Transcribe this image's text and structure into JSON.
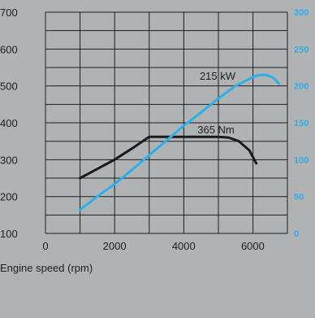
{
  "chart_data": {
    "type": "line",
    "xlabel": "Engine speed (rpm)",
    "xlim": [
      0,
      7000
    ],
    "x_ticks": [
      "0",
      "2000",
      "4000",
      "6000"
    ],
    "x_tick_values": [
      0,
      2000,
      4000,
      6000
    ],
    "y_left_lim": [
      100,
      700
    ],
    "y_left_ticks": [
      "100",
      "200",
      "300",
      "400",
      "500",
      "600",
      "700"
    ],
    "y_left_tick_values": [
      100,
      200,
      300,
      400,
      500,
      600,
      700
    ],
    "y_right_lim": [
      0,
      300
    ],
    "y_right_ticks": [
      "0",
      "50",
      "100",
      "150",
      "200",
      "250",
      "300"
    ],
    "y_right_tick_values": [
      0,
      50,
      100,
      150,
      200,
      250,
      300
    ],
    "grid": true,
    "series": [
      {
        "name": "365 Nm",
        "axis": "left",
        "color": "#1a1a1a",
        "x": [
          1000,
          1500,
          2000,
          2500,
          3000,
          3500,
          4000,
          4500,
          5000,
          5300,
          5600,
          5900,
          6100
        ],
        "y": [
          250,
          275,
          300,
          330,
          362,
          362,
          362,
          362,
          362,
          360,
          350,
          325,
          290
        ]
      },
      {
        "name": "215 kW",
        "axis": "right",
        "color": "#27b0ea",
        "x": [
          1000,
          1500,
          2000,
          2500,
          3000,
          3500,
          4000,
          4500,
          5000,
          5500,
          6000,
          6200,
          6400,
          6600,
          6750
        ],
        "y": [
          32,
          50,
          67,
          86,
          106,
          126,
          146,
          164,
          183,
          200,
          212,
          215,
          215,
          211,
          203
        ]
      }
    ]
  }
}
